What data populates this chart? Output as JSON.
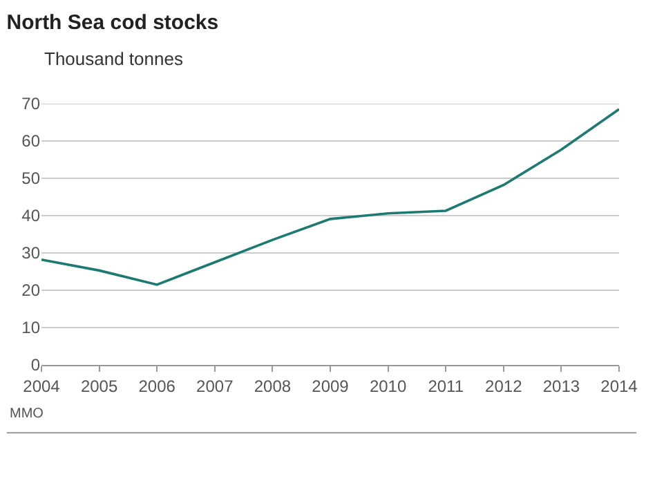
{
  "chart_data": {
    "type": "line",
    "title": "North Sea cod stocks",
    "subtitle": "Thousand tonnes",
    "x": [
      2004,
      2005,
      2006,
      2007,
      2008,
      2009,
      2010,
      2011,
      2012,
      2013,
      2014
    ],
    "series": [
      {
        "color": "#1d7a72",
        "values": [
          28.2,
          25.3,
          21.5,
          27.5,
          33.5,
          39.1,
          40.6,
          41.3,
          48.2,
          57.7,
          68.5
        ]
      }
    ],
    "xlim": [
      2004,
      2014
    ],
    "xticks": [
      2004,
      2005,
      2006,
      2007,
      2008,
      2009,
      2010,
      2011,
      2012,
      2013,
      2014
    ],
    "ylim": [
      0,
      70
    ],
    "yticks": [
      0,
      10,
      20,
      30,
      40,
      50,
      60,
      70
    ],
    "grid": "y",
    "marker": "none",
    "line_style": "solid",
    "annotations": [
      "MMO"
    ]
  }
}
